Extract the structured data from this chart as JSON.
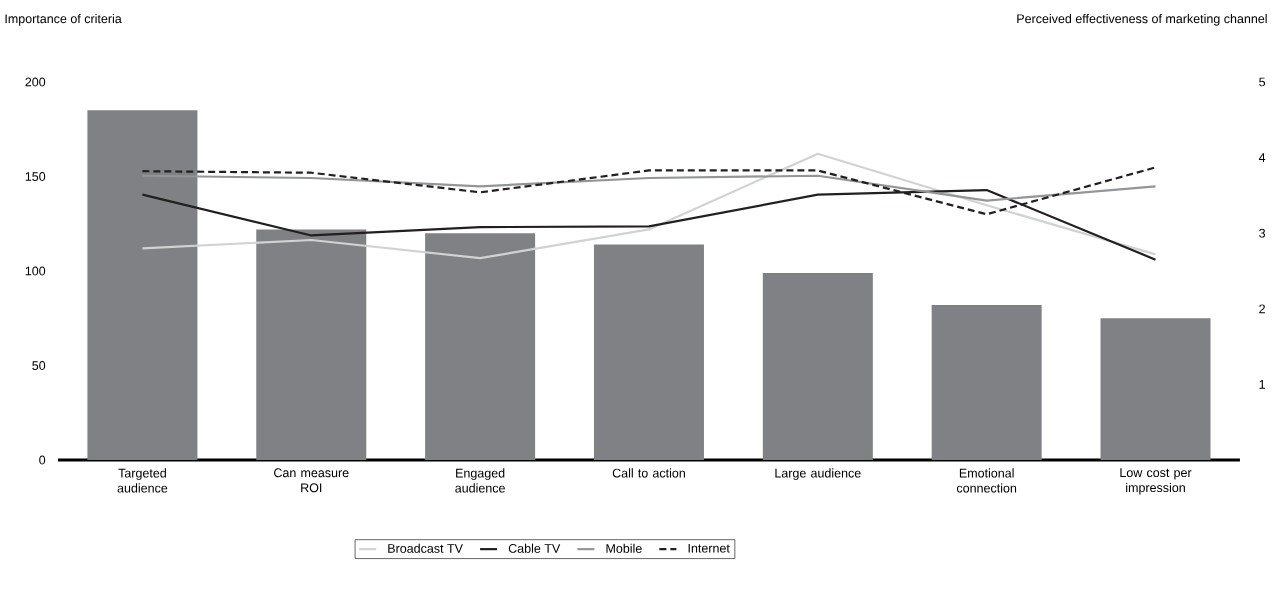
{
  "chart_data": {
    "type": "bar",
    "xlabel": null,
    "ylabel": "Importance of criteria",
    "y2label": "Perceived effectiveness of marketing channel",
    "categories": [
      "Targeted audience",
      "Can measure ROI",
      "Engaged audience",
      "Call to action",
      "Large audience",
      "Emotional connection",
      "Low cost per impression"
    ],
    "series": [
      {
        "color": "#808184",
        "values": [
          185,
          122,
          120,
          114,
          99,
          82,
          75
        ]
      },
      {
        "name": "Broadcast TV",
        "type": "line",
        "axis": "y2",
        "color": "#d1d2d3",
        "line_style": "solid",
        "values": [
          2.8,
          2.91,
          2.67,
          3.05,
          4.05,
          3.37,
          2.72
        ]
      },
      {
        "name": "Cable TV",
        "type": "line",
        "axis": "y2",
        "color": "#231f20",
        "line_style": "solid",
        "values": [
          3.51,
          2.97,
          3.08,
          3.09,
          3.51,
          3.57,
          2.65
        ]
      },
      {
        "name": "Mobile",
        "type": "line",
        "axis": "y2",
        "color": "#939598",
        "line_style": "solid",
        "values": [
          3.76,
          3.73,
          3.62,
          3.73,
          3.76,
          3.43,
          3.62
        ]
      },
      {
        "name": "Internet",
        "type": "line",
        "axis": "y2",
        "color": "#231f20",
        "line_style": "dashed",
        "values": [
          3.82,
          3.8,
          3.54,
          3.83,
          3.83,
          3.25,
          3.87
        ]
      }
    ],
    "ylim": [
      0,
      200
    ],
    "yticks": [
      0,
      50,
      100,
      150,
      200
    ],
    "y2lim": [
      0,
      5
    ],
    "y2ticks": [
      1,
      2,
      3,
      4,
      5
    ],
    "grid": false,
    "legend": "bottom",
    "marker": "none"
  }
}
